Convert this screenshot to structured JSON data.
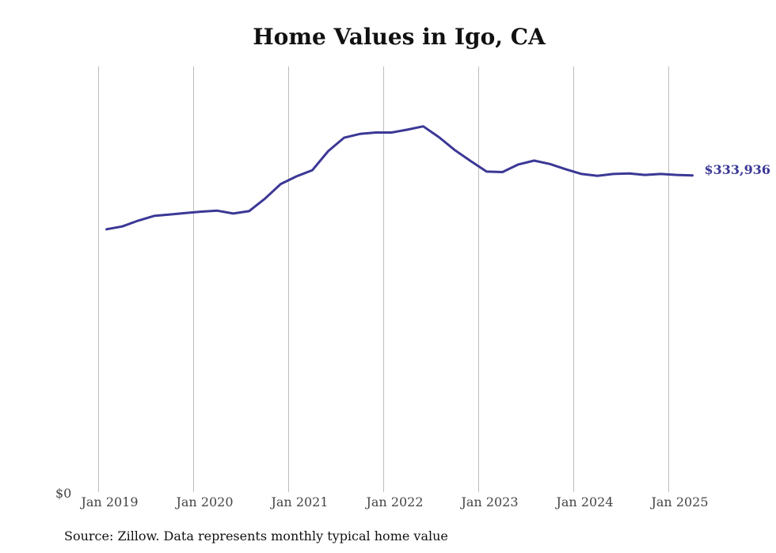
{
  "chart_data": {
    "type": "line",
    "title": "Home Values in Igo, CA",
    "source": "Source: Zillow. Data represents monthly typical home value",
    "x_tick_labels": [
      "Jan 2019",
      "Jan 2020",
      "Jan 2021",
      "Jan 2022",
      "Jan 2023",
      "Jan 2024",
      "Jan 2025"
    ],
    "y_tick_labels": [
      "$0"
    ],
    "ylim": [
      0,
      450000
    ],
    "grid": "vertical",
    "line_color": "#3b3896",
    "end_label": "$333,936",
    "series": [
      {
        "x": [
          "2019-02",
          "2019-04",
          "2019-06",
          "2019-08",
          "2019-10",
          "2019-12",
          "2020-02",
          "2020-04",
          "2020-06",
          "2020-08",
          "2020-10",
          "2020-12",
          "2021-02",
          "2021-04",
          "2021-06",
          "2021-08",
          "2021-10",
          "2021-12",
          "2022-02",
          "2022-04",
          "2022-06",
          "2022-08",
          "2022-10",
          "2022-12",
          "2023-02",
          "2023-04",
          "2023-06",
          "2023-08",
          "2023-10",
          "2023-12",
          "2024-02",
          "2024-04",
          "2024-06",
          "2024-08",
          "2024-10",
          "2024-12",
          "2025-02",
          "2025-04"
        ],
        "y": [
          277500,
          280500,
          286500,
          291500,
          293000,
          294500,
          296000,
          297000,
          294000,
          296500,
          309500,
          325000,
          333000,
          339500,
          359500,
          373500,
          377500,
          379000,
          379000,
          382000,
          385500,
          374000,
          360500,
          349000,
          338000,
          337500,
          345500,
          349500,
          346000,
          340500,
          335500,
          333500,
          335500,
          336000,
          334500,
          335500,
          334500,
          333936
        ]
      }
    ]
  }
}
